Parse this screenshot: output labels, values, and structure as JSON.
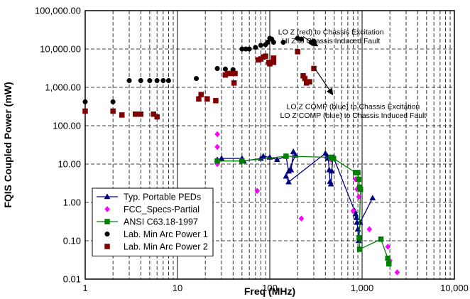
{
  "chart_data": {
    "type": "scatter",
    "title": "",
    "xlabel": "Freq (MHz)",
    "ylabel": "FQIS Coupled Power (mW)",
    "x_scale": "log",
    "y_scale": "log",
    "xlim": [
      1,
      10000
    ],
    "ylim": [
      0.01,
      100000
    ],
    "grid": true,
    "legend_position": "bottom-left",
    "x_tick_labels": [
      "1",
      "10",
      "100",
      "1,000",
      "10,000"
    ],
    "y_tick_labels": [
      "0.01",
      "0.10",
      "1.00",
      "10.00",
      "100.00",
      "1,000.00",
      "10,000.00",
      "100,000.00"
    ],
    "annotations": [
      {
        "text": "LO Z (red) to Chassis Excitation",
        "x": 460,
        "y": 24000
      },
      {
        "text": "HI Z to Chassis Induced Fault",
        "x": 460,
        "y": 14000
      },
      {
        "text": "LO Z COMP (blue) to Chassis Excitation",
        "x": 800,
        "y": 270
      },
      {
        "text": "LO Z COMP (blue) to Chassis Induced Fault",
        "x": 800,
        "y": 160
      }
    ],
    "arrows": [
      {
        "from": [
          230,
          21000
        ],
        "to": [
          330,
          12000
        ]
      },
      {
        "from": [
          300,
          3400
        ],
        "to": [
          480,
          650
        ]
      }
    ],
    "series": [
      {
        "name": "Typ. Portable PEDs",
        "color": "#000080",
        "marker": "triangle",
        "line": true,
        "points": [
          [
            27,
            13
          ],
          [
            30,
            14
          ],
          [
            50,
            14
          ],
          [
            52,
            12
          ],
          [
            80,
            14
          ],
          [
            85,
            16
          ],
          [
            100,
            15
          ],
          [
            120,
            13
          ],
          [
            150,
            16
          ],
          [
            160,
            6.5
          ],
          [
            170,
            7
          ],
          [
            180,
            21
          ],
          [
            190,
            17
          ],
          [
            150,
            4.8
          ],
          [
            160,
            3.4
          ],
          [
            400,
            19
          ],
          [
            420,
            16
          ],
          [
            430,
            14
          ],
          [
            440,
            7
          ],
          [
            450,
            3.5
          ],
          [
            460,
            3
          ],
          [
            470,
            6.5
          ],
          [
            480,
            14
          ],
          [
            490,
            15
          ],
          [
            830,
            0.6
          ],
          [
            850,
            0.5
          ],
          [
            870,
            0.4
          ],
          [
            880,
            0.3
          ],
          [
            900,
            0.2
          ],
          [
            920,
            0.1
          ],
          [
            950,
            0.3
          ],
          [
            1300,
            1.3
          ]
        ]
      },
      {
        "name": "FCC_Specs-Partial",
        "color": "#ff00ff",
        "marker": "diamond",
        "line": false,
        "points": [
          [
            27,
            60
          ],
          [
            27,
            28
          ],
          [
            27,
            10
          ],
          [
            73,
            2
          ],
          [
            220,
            0.38
          ],
          [
            460,
            13
          ],
          [
            800,
            0.6
          ],
          [
            850,
            4
          ],
          [
            880,
            2.2
          ],
          [
            920,
            1.4
          ],
          [
            1200,
            0.2
          ],
          [
            1900,
            0.07
          ],
          [
            2000,
            0.03
          ],
          [
            2400,
            0.015
          ]
        ]
      },
      {
        "name": "ANSI C63.18-1997",
        "color": "#008000",
        "marker": "square",
        "line": true,
        "points": [
          [
            27,
            12
          ],
          [
            50,
            12
          ],
          [
            150,
            16
          ],
          [
            460,
            15
          ],
          [
            490,
            14
          ],
          [
            850,
            6
          ],
          [
            900,
            6
          ],
          [
            920,
            4
          ],
          [
            940,
            2.5
          ],
          [
            960,
            2.2
          ],
          [
            930,
            0.12
          ],
          [
            940,
            0.06
          ],
          [
            1600,
            0.11
          ],
          [
            1900,
            0.035
          ],
          [
            1950,
            0.025
          ]
        ]
      },
      {
        "name": "Lab. Min Arc Power 1",
        "color": "#000000",
        "marker": "circle",
        "line": false,
        "points": [
          [
            1,
            420
          ],
          [
            2,
            420
          ],
          [
            3,
            1500
          ],
          [
            4,
            1500
          ],
          [
            5,
            1500
          ],
          [
            6,
            1500
          ],
          [
            7,
            1500
          ],
          [
            8,
            1500
          ],
          [
            16,
            1700
          ],
          [
            27,
            3100
          ],
          [
            33,
            3000
          ],
          [
            40,
            2900
          ],
          [
            50,
            10000
          ],
          [
            55,
            10000
          ],
          [
            60,
            10000
          ],
          [
            70,
            11000
          ],
          [
            80,
            12500
          ],
          [
            90,
            13000
          ],
          [
            95,
            15000
          ],
          [
            100,
            19000
          ],
          [
            105,
            18000
          ],
          [
            110,
            15000
          ],
          [
            140,
            15000
          ],
          [
            200,
            19000
          ],
          [
            220,
            18000
          ],
          [
            280,
            15000
          ],
          [
            300,
            16000
          ]
        ]
      },
      {
        "name": "Lab. Min Arc Power 2",
        "color": "#800000",
        "marker": "square",
        "line": false,
        "points": [
          [
            1,
            240
          ],
          [
            2,
            240
          ],
          [
            2.5,
            190
          ],
          [
            3.5,
            200
          ],
          [
            4,
            200
          ],
          [
            5.5,
            200
          ],
          [
            6,
            170
          ],
          [
            17,
            500
          ],
          [
            18,
            650
          ],
          [
            21,
            500
          ],
          [
            26,
            450
          ],
          [
            33,
            2100
          ],
          [
            35,
            2300
          ],
          [
            38,
            2300
          ],
          [
            41,
            1300
          ],
          [
            42,
            2300
          ],
          [
            75,
            5200
          ],
          [
            80,
            5500
          ],
          [
            85,
            6200
          ],
          [
            90,
            6500
          ],
          [
            98,
            4500
          ],
          [
            100,
            4100
          ],
          [
            110,
            5800
          ],
          [
            110,
            4500
          ],
          [
            200,
            8500
          ],
          [
            230,
            2000
          ],
          [
            240,
            1700
          ],
          [
            250,
            1300
          ],
          [
            270,
            1400
          ],
          [
            300,
            3100
          ]
        ]
      }
    ]
  }
}
